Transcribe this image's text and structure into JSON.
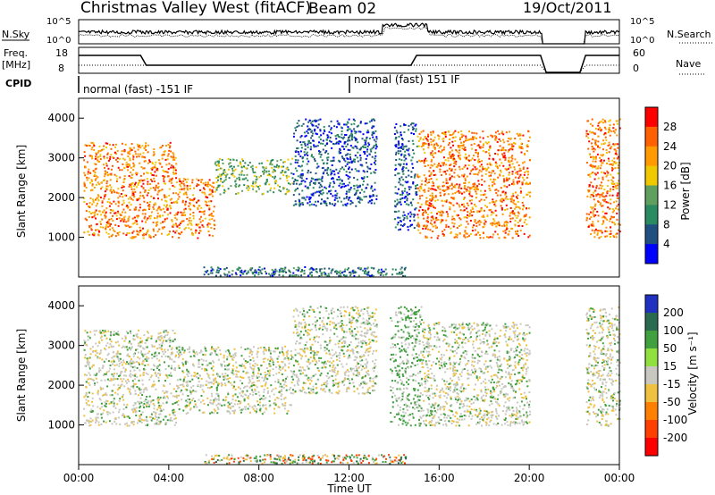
{
  "header": {
    "station": "Christmas Valley West (fitACF)",
    "beam": "Beam 02",
    "date": "19/Oct/2011"
  },
  "aux": {
    "nsky_label": "N.Sky",
    "nsky_ticks": [
      "10^5",
      "10^0"
    ],
    "nsearch_label": "N.Search",
    "nsearch_ticks": [
      "10^5",
      "10^0"
    ],
    "freq_label_1": "Freq.",
    "freq_label_2": "[MHz]",
    "freq_ticks": [
      "18",
      "8"
    ],
    "nave_label": "Nave",
    "nave_ticks": [
      "60",
      "0"
    ],
    "cpid_label": "CPID",
    "cpid_1": "normal (fast) -151 IF",
    "cpid_2": "normal (fast) 151 IF"
  },
  "power_panel": {
    "ylabel": "Slant Range [km]",
    "yticks": [
      "4000",
      "3000",
      "2000",
      "1000"
    ],
    "colorbar_label": "Power [dB]",
    "colorbar_ticks": [
      "28",
      "24",
      "20",
      "16",
      "12",
      "8",
      "4"
    ],
    "colorbar_colors": [
      "#ff0000",
      "#ff6000",
      "#ff9a00",
      "#f0c800",
      "#5fa060",
      "#2a8a60",
      "#205080",
      "#0000ff"
    ]
  },
  "velocity_panel": {
    "ylabel": "Slant Range [km]",
    "yticks": [
      "4000",
      "3000",
      "2000",
      "1000"
    ],
    "colorbar_label": "Velocity [m s⁻¹]",
    "colorbar_ticks": [
      "200",
      "100",
      "50",
      "15",
      "-15",
      "-50",
      "-100",
      "-200"
    ],
    "colorbar_colors": [
      "#2030c0",
      "#2a6a50",
      "#40a040",
      "#90e040",
      "#c8c8c0",
      "#f0c040",
      "#ff8000",
      "#ff4000",
      "#ff0000"
    ]
  },
  "time_axis": {
    "label": "Time UT",
    "ticks": [
      "00:00",
      "04:00",
      "08:00",
      "12:00",
      "16:00",
      "20:00",
      "00:00"
    ]
  },
  "chart_data": {
    "type": "heatmap",
    "title": "Christmas Valley West (fitACF) Beam 02 19/Oct/2011",
    "xlabel": "Time UT",
    "ylabel": "Slant Range [km]",
    "x_range": [
      "00:00",
      "24:00"
    ],
    "y_range_km": [
      0,
      4500
    ],
    "panels": [
      {
        "name": "Power [dB]",
        "range": [
          0,
          32
        ],
        "regions": [
          {
            "t0": 0.2,
            "t1": 4.3,
            "r0": 1000,
            "r1": 3400,
            "value": 26
          },
          {
            "t0": 4.3,
            "t1": 6.0,
            "r0": 1000,
            "r1": 2500,
            "value": 26
          },
          {
            "t0": 6.0,
            "t1": 9.5,
            "r0": 2100,
            "r1": 3000,
            "value": 16
          },
          {
            "t0": 9.5,
            "t1": 13.2,
            "r0": 1800,
            "r1": 4000,
            "value": 8
          },
          {
            "t0": 14.0,
            "t1": 15.0,
            "r0": 1200,
            "r1": 3900,
            "value": 8
          },
          {
            "t0": 15.0,
            "t1": 20.0,
            "r0": 1000,
            "r1": 3700,
            "value": 26
          },
          {
            "t0": 22.5,
            "t1": 24.0,
            "r0": 1000,
            "r1": 4000,
            "value": 26
          }
        ]
      },
      {
        "name": "Velocity [m s⁻¹]",
        "range": [
          -200,
          200
        ],
        "regions": [
          {
            "t0": 0.2,
            "t1": 4.3,
            "r0": 1000,
            "r1": 3400,
            "value": 0
          },
          {
            "t0": 4.3,
            "t1": 9.5,
            "r0": 1300,
            "r1": 3000,
            "value": 0
          },
          {
            "t0": 9.5,
            "t1": 13.2,
            "r0": 1800,
            "r1": 4000,
            "value": 0
          },
          {
            "t0": 13.8,
            "t1": 15.2,
            "r0": 1000,
            "r1": 4000,
            "value": 20
          },
          {
            "t0": 15.2,
            "t1": 20.0,
            "r0": 1000,
            "r1": 3600,
            "value": 0
          },
          {
            "t0": 22.5,
            "t1": 24.0,
            "r0": 1000,
            "r1": 4000,
            "value": 0
          }
        ]
      }
    ]
  }
}
